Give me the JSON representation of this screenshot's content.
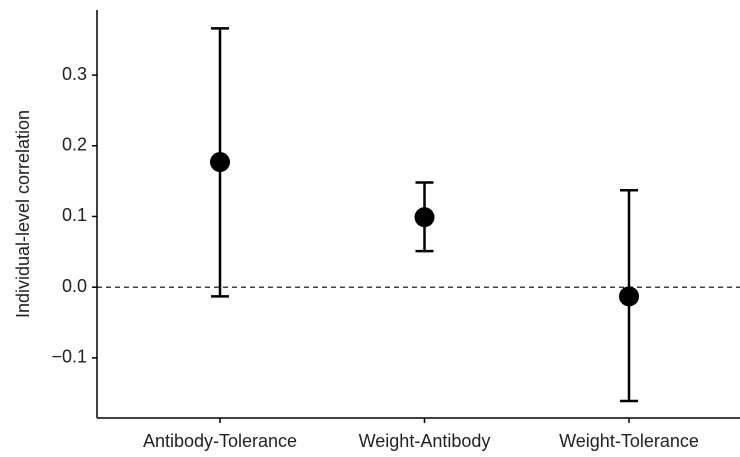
{
  "chart_data": {
    "type": "errorbar",
    "ylabel": "Individual-level correlation",
    "categories": [
      "Antibody-Tolerance",
      "Weight-Antibody",
      "Weight-Tolerance"
    ],
    "values": [
      0.177,
      0.099,
      -0.013
    ],
    "lower": [
      -0.013,
      0.051,
      -0.161
    ],
    "upper": [
      0.366,
      0.148,
      0.137
    ],
    "color": "#000000",
    "hline": 0,
    "ylim": [
      -0.185,
      0.392
    ],
    "yticks": [
      {
        "value": -0.1,
        "label": "−0.1"
      },
      {
        "value": 0,
        "label": "0.0"
      },
      0.1,
      0.2,
      0.3
    ]
  }
}
